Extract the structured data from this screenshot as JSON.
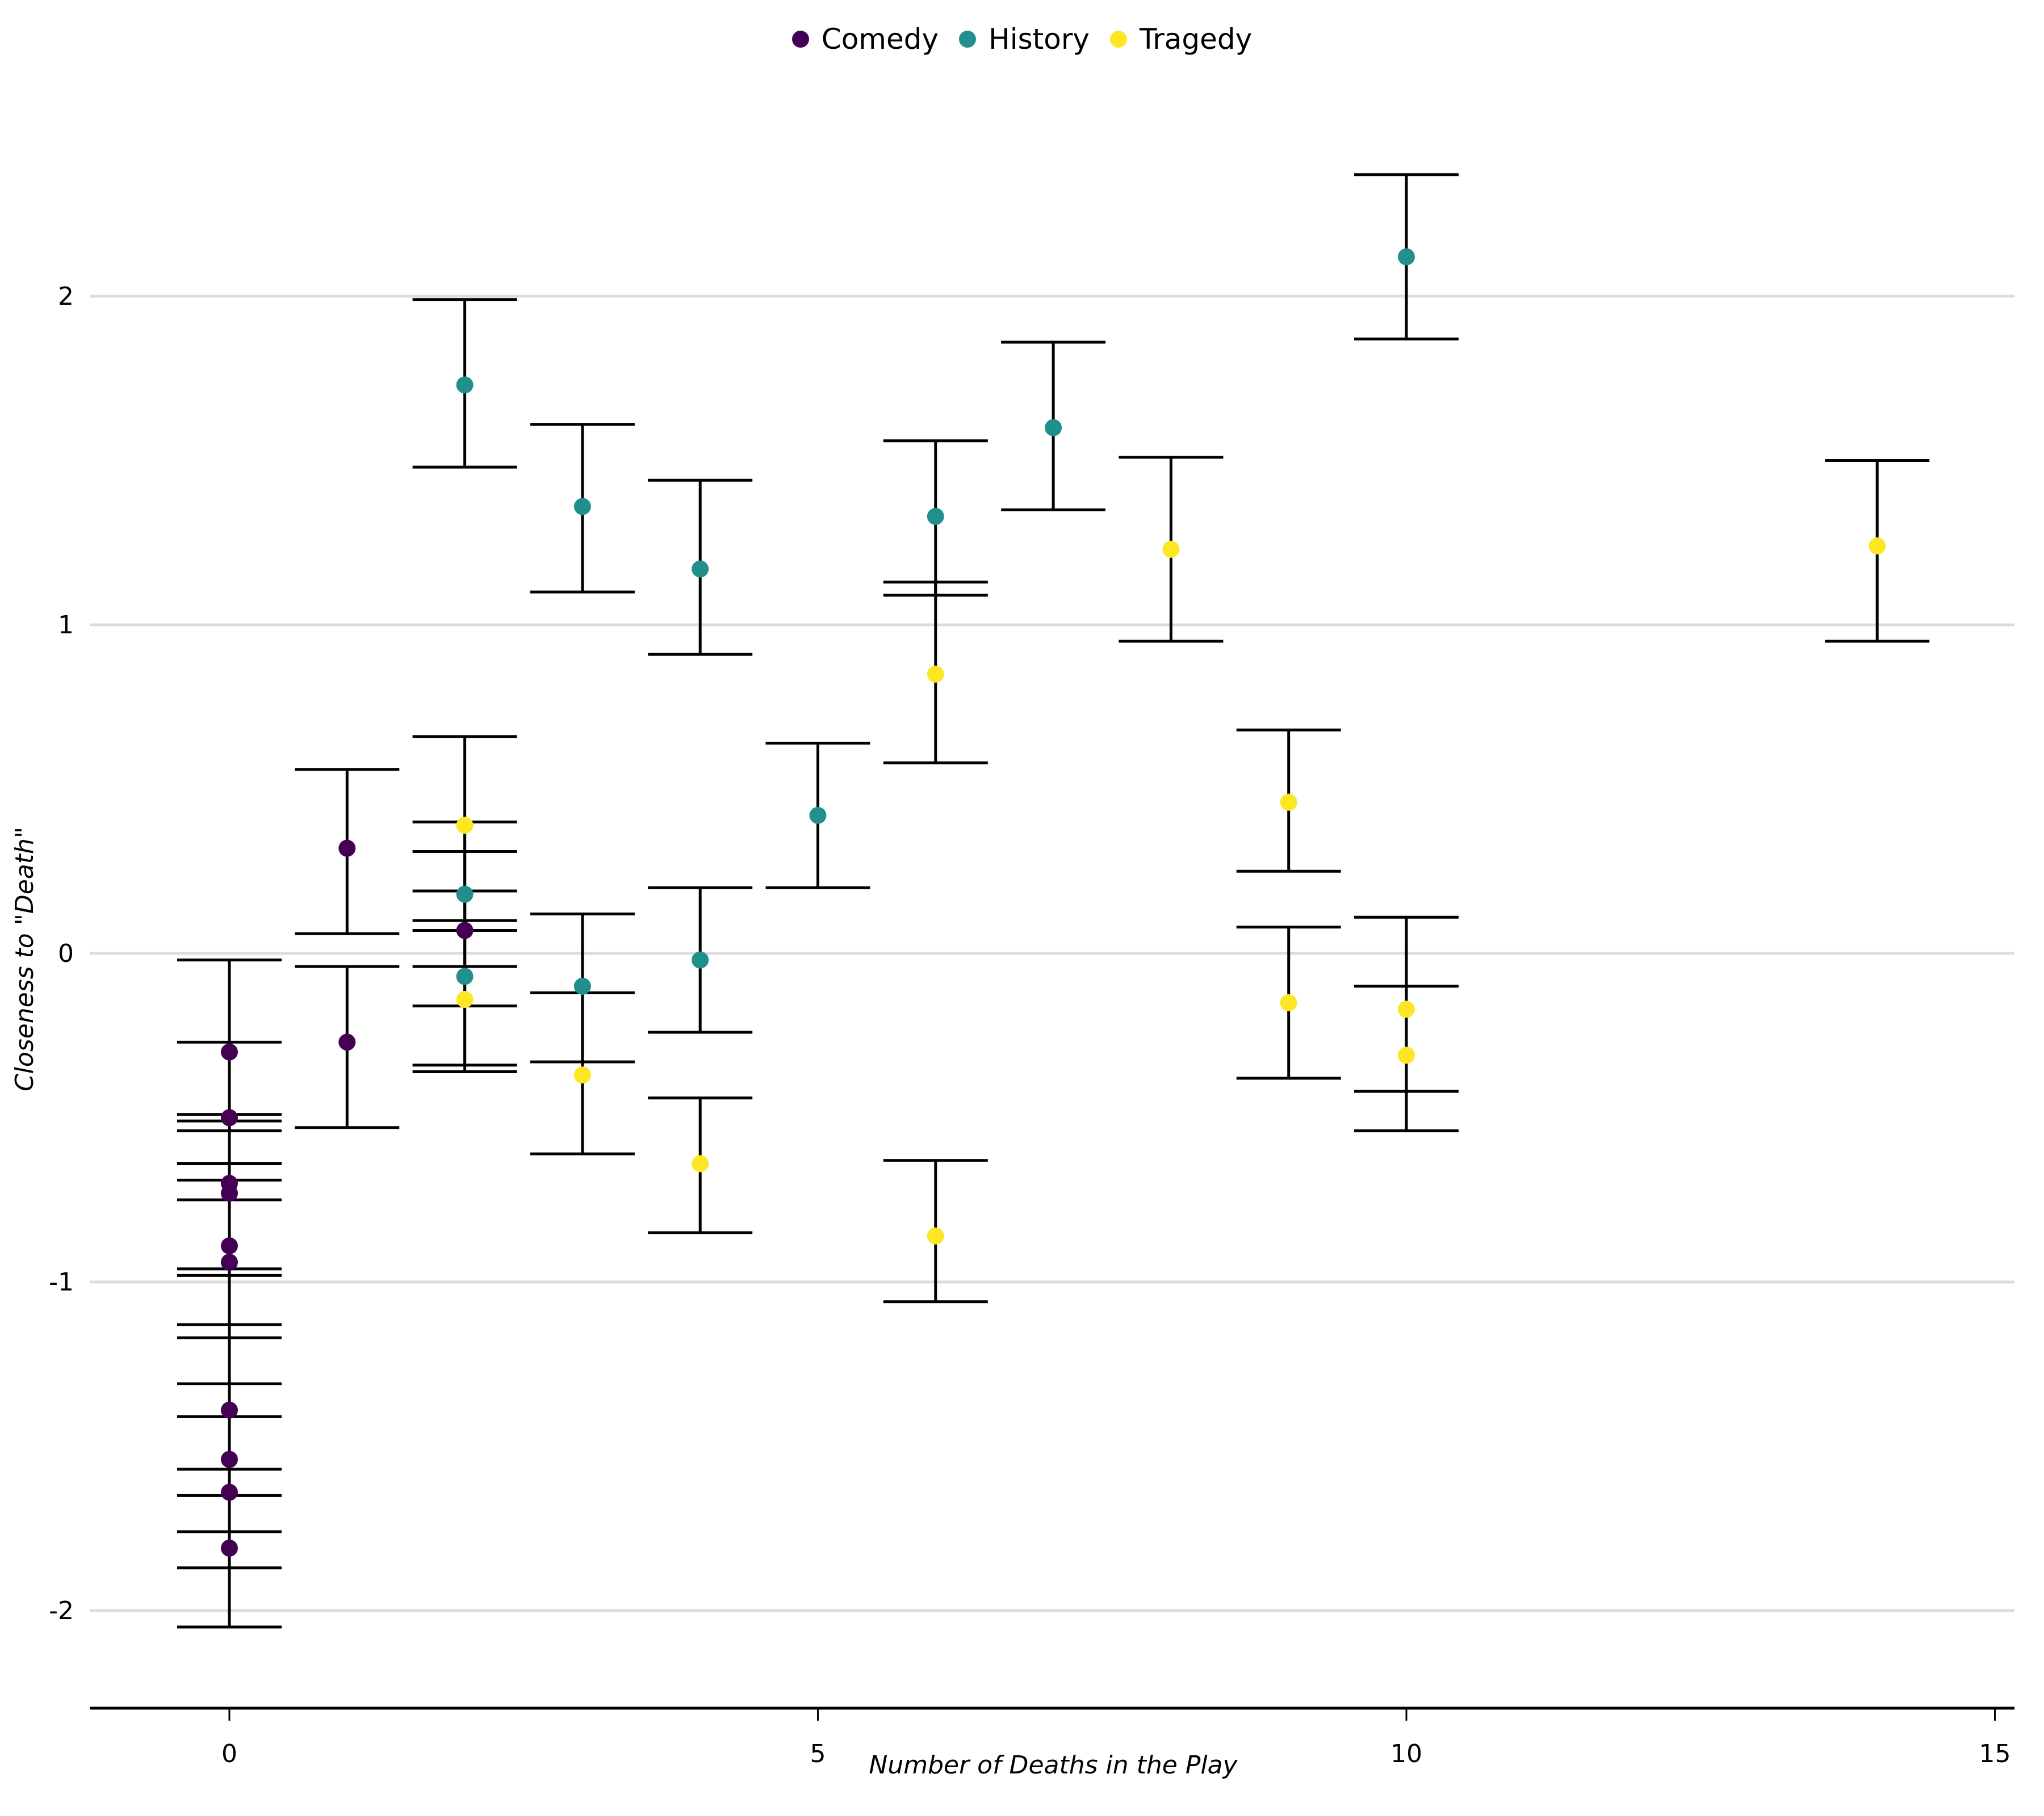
{
  "chart_data": {
    "type": "scatter",
    "title": "",
    "xlabel": "Number of Deaths in the Play",
    "ylabel": "Closeness to \"Death\"",
    "xlim": [
      -1.2,
      15.2
    ],
    "ylim": [
      -2.27,
      2.45
    ],
    "xticks": [
      0,
      5,
      10,
      15
    ],
    "yticks": [
      -2,
      -1,
      0,
      1,
      2
    ],
    "xtick_labels": [
      "0",
      "5",
      "10",
      "15"
    ],
    "ytick_labels": [
      "-2",
      "-1",
      "0",
      "1",
      "2"
    ],
    "grid": "horizontal",
    "legend_position": "top",
    "error_bars": true,
    "series": [
      {
        "name": "Comedy",
        "color": "#440154",
        "points": [
          {
            "x": 0,
            "y": -0.3,
            "lo": -0.54,
            "hi": -0.02
          },
          {
            "x": 0,
            "y": -0.5,
            "lo": -0.75,
            "hi": -0.27
          },
          {
            "x": 0,
            "y": -0.7,
            "lo": -0.96,
            "hi": -0.49
          },
          {
            "x": 0,
            "y": -0.73,
            "lo": -0.98,
            "hi": -0.51
          },
          {
            "x": 0,
            "y": -0.89,
            "lo": -1.13,
            "hi": -0.64
          },
          {
            "x": 0,
            "y": -0.94,
            "lo": -1.17,
            "hi": -0.69
          },
          {
            "x": 0,
            "y": -1.39,
            "lo": -1.65,
            "hi": -1.13
          },
          {
            "x": 0,
            "y": -1.54,
            "lo": -1.76,
            "hi": -1.31
          },
          {
            "x": 0,
            "y": -1.64,
            "lo": -1.87,
            "hi": -1.41
          },
          {
            "x": 0,
            "y": -1.81,
            "lo": -2.05,
            "hi": -1.57
          },
          {
            "x": 1,
            "y": 0.32,
            "lo": 0.06,
            "hi": 0.56
          },
          {
            "x": 1,
            "y": -0.27,
            "lo": -0.53,
            "hi": -0.04
          },
          {
            "x": 2,
            "y": 0.07,
            "lo": -0.16,
            "hi": 0.31
          }
        ]
      },
      {
        "name": "History",
        "color": "#21908C",
        "points": [
          {
            "x": 2,
            "y": 1.73,
            "lo": 1.48,
            "hi": 1.99
          },
          {
            "x": 2,
            "y": 0.18,
            "lo": -0.04,
            "hi": 0.4
          },
          {
            "x": 2,
            "y": -0.07,
            "lo": -0.34,
            "hi": 0.19
          },
          {
            "x": 3,
            "y": 1.36,
            "lo": 1.1,
            "hi": 1.61
          },
          {
            "x": 3,
            "y": -0.1,
            "lo": -0.33,
            "hi": 0.12
          },
          {
            "x": 4,
            "y": 1.17,
            "lo": 0.91,
            "hi": 1.44
          },
          {
            "x": 4,
            "y": -0.02,
            "lo": -0.24,
            "hi": 0.2
          },
          {
            "x": 5,
            "y": 0.42,
            "lo": 0.2,
            "hi": 0.64
          },
          {
            "x": 6,
            "y": 1.33,
            "lo": 1.09,
            "hi": 1.56
          },
          {
            "x": 7,
            "y": 1.6,
            "lo": 1.35,
            "hi": 1.86
          },
          {
            "x": 10,
            "y": 2.12,
            "lo": 1.87,
            "hi": 2.37
          }
        ]
      },
      {
        "name": "Tragedy",
        "color": "#FDE725",
        "points": [
          {
            "x": 2,
            "y": 0.39,
            "lo": 0.1,
            "hi": 0.66
          },
          {
            "x": 2,
            "y": -0.14,
            "lo": -0.36,
            "hi": 0.07
          },
          {
            "x": 3,
            "y": -0.37,
            "lo": -0.61,
            "hi": -0.12
          },
          {
            "x": 4,
            "y": -0.64,
            "lo": -0.85,
            "hi": -0.44
          },
          {
            "x": 6,
            "y": 0.85,
            "lo": 0.58,
            "hi": 1.13
          },
          {
            "x": 6,
            "y": -0.86,
            "lo": -1.06,
            "hi": -0.63
          },
          {
            "x": 8,
            "y": 1.23,
            "lo": 0.95,
            "hi": 1.51
          },
          {
            "x": 9,
            "y": 0.46,
            "lo": 0.25,
            "hi": 0.68
          },
          {
            "x": 9,
            "y": -0.15,
            "lo": -0.38,
            "hi": 0.08
          },
          {
            "x": 10,
            "y": -0.17,
            "lo": -0.42,
            "hi": 0.11
          },
          {
            "x": 10,
            "y": -0.31,
            "lo": -0.54,
            "hi": -0.1
          },
          {
            "x": 14,
            "y": 1.24,
            "lo": 0.95,
            "hi": 1.5
          }
        ]
      }
    ]
  }
}
